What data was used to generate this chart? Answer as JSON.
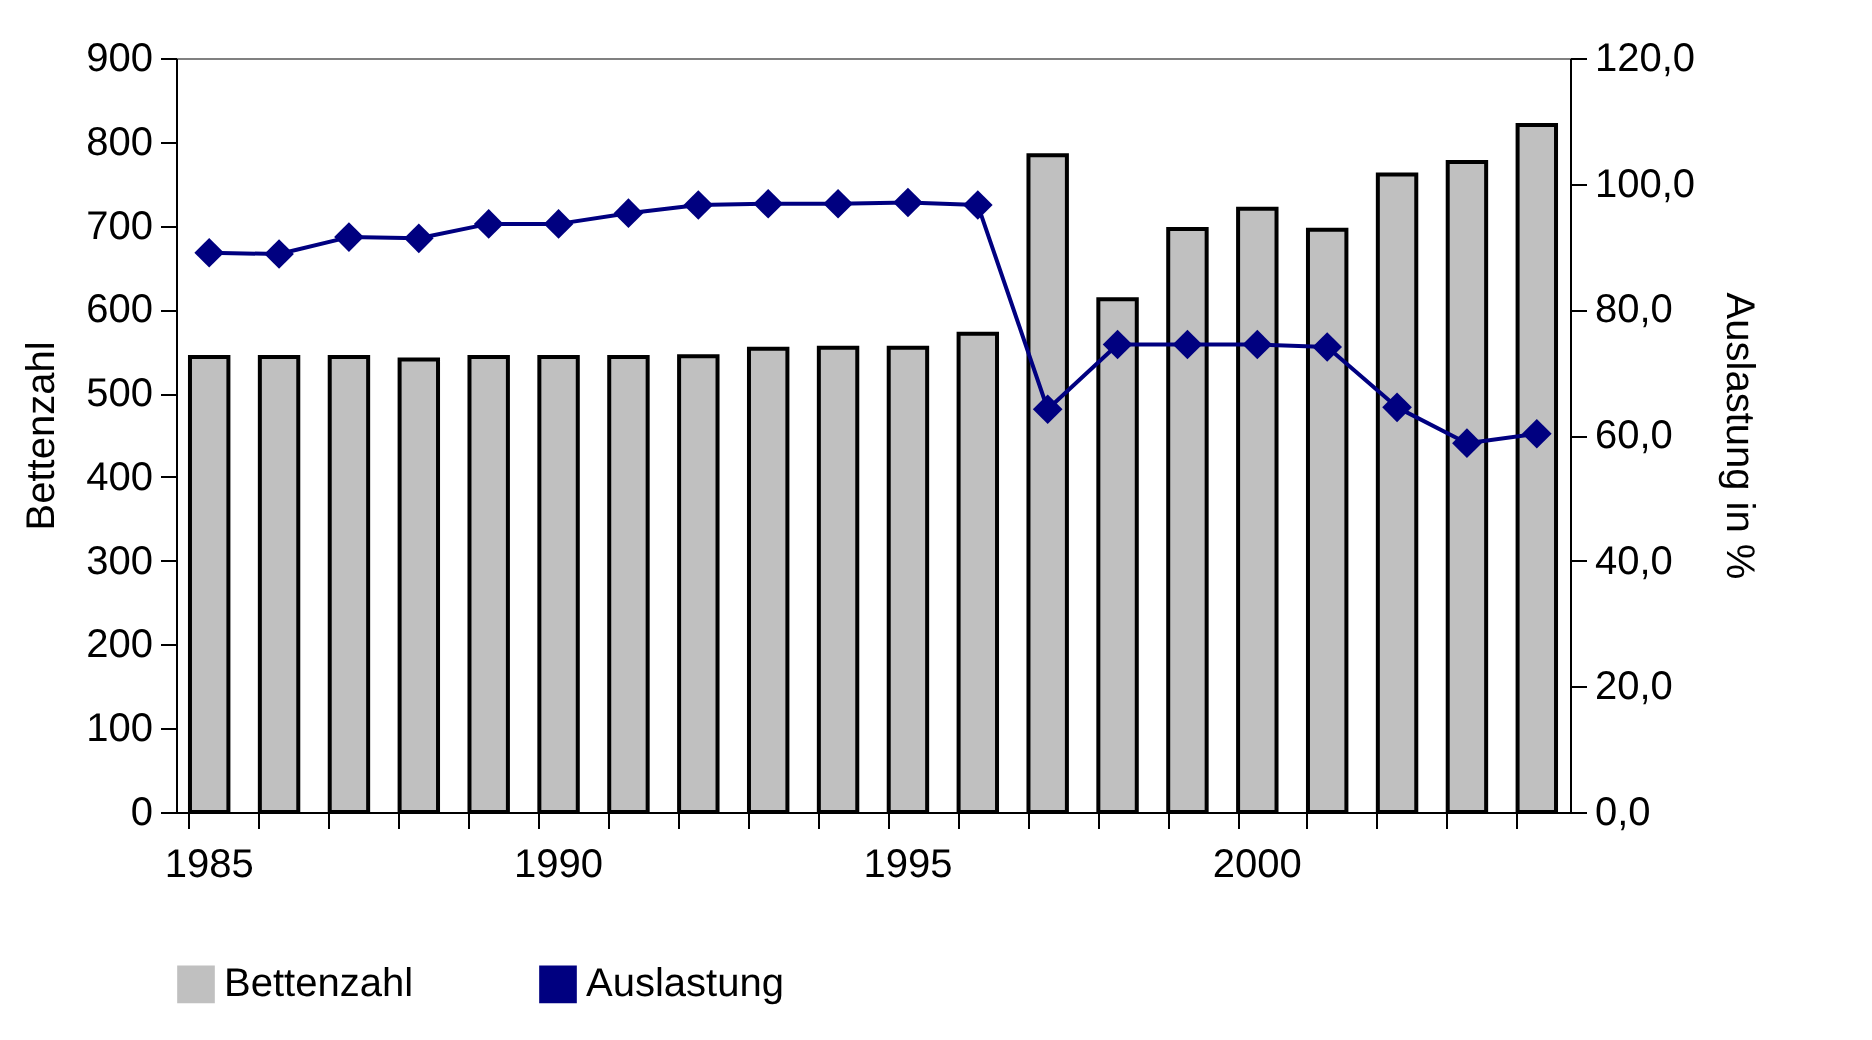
{
  "chart_data": {
    "type": "bar",
    "categories": [
      "1985",
      null,
      null,
      null,
      null,
      "1990",
      null,
      null,
      null,
      null,
      "1995",
      null,
      null,
      null,
      null,
      "2000",
      null,
      null,
      null,
      null
    ],
    "ylabel": "Bettenzahl",
    "y2label": "Auslastung in %",
    "ylim": [
      0,
      900
    ],
    "yticks": [
      0,
      100,
      200,
      300,
      400,
      500,
      600,
      700,
      800,
      900
    ],
    "y2lim": [
      0,
      120
    ],
    "y2ticks": [
      {
        "value": 0,
        "label": "0,0"
      },
      {
        "value": 20,
        "label": "20,0"
      },
      {
        "value": 40,
        "label": "40,0"
      },
      {
        "value": 60,
        "label": "60,0"
      },
      {
        "value": 80,
        "label": "80,0"
      },
      {
        "value": 100,
        "label": "100,0"
      },
      {
        "value": 120,
        "label": "120,0"
      }
    ],
    "grid": false,
    "legend": "bottom",
    "marker": "diamond",
    "series": [
      {
        "name": "Bettenzahl",
        "color": "#c0c0c0",
        "values": [
          543,
          543,
          543,
          540,
          543,
          543,
          543,
          544,
          553,
          554,
          554,
          571,
          784,
          612,
          696,
          720,
          695,
          761,
          776,
          820
        ]
      },
      {
        "name": "Auslastung",
        "type": "line",
        "axis": "y2",
        "color": "#000080",
        "values": [
          89.0,
          88.8,
          91.5,
          91.3,
          93.6,
          93.6,
          95.3,
          96.6,
          96.8,
          96.8,
          97.0,
          96.6,
          64.1,
          74.4,
          74.4,
          74.4,
          74.0,
          64.4,
          58.7,
          60.2
        ]
      }
    ]
  }
}
